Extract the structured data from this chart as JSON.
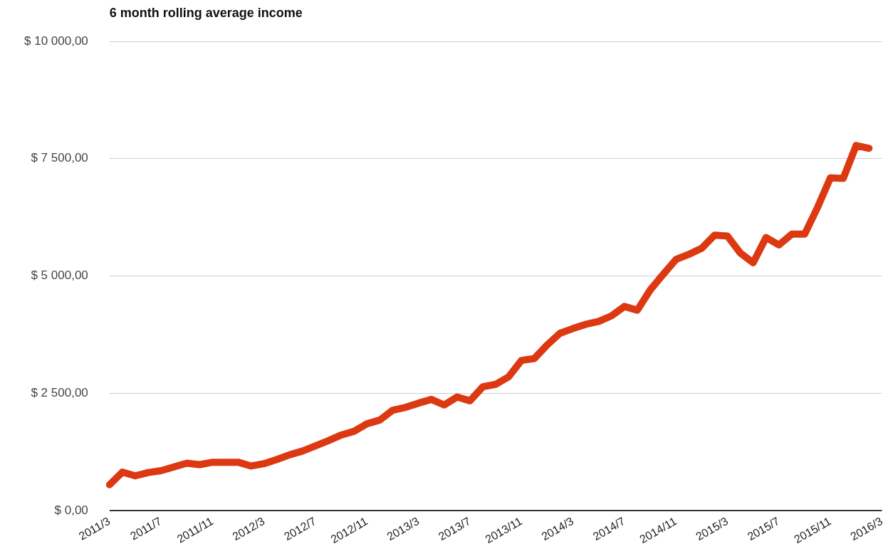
{
  "chart_data": {
    "type": "line",
    "title": "6 month rolling average income",
    "categories": [
      "2011/3",
      null,
      null,
      null,
      "2011/7",
      null,
      null,
      null,
      "2011/11",
      null,
      null,
      null,
      "2012/3",
      null,
      null,
      null,
      "2012/7",
      null,
      null,
      null,
      "2012/11",
      null,
      null,
      null,
      "2013/3",
      null,
      null,
      null,
      "2013/7",
      null,
      null,
      null,
      "2013/11",
      null,
      null,
      null,
      "2014/3",
      null,
      null,
      null,
      "2014/7",
      null,
      null,
      null,
      "2014/11",
      null,
      null,
      null,
      "2015/3",
      null,
      null,
      null,
      "2015/7",
      null,
      null,
      null,
      "2015/11",
      null,
      null,
      null,
      "2016/3"
    ],
    "series": [
      {
        "color": "#dc3912",
        "values": [
          550,
          820,
          740,
          810,
          850,
          930,
          1010,
          980,
          1030,
          1030,
          1030,
          950,
          1000,
          1090,
          1190,
          1270,
          1380,
          1490,
          1610,
          1690,
          1850,
          1930,
          2140,
          2200,
          2290,
          2370,
          2250,
          2420,
          2340,
          2640,
          2690,
          2850,
          3200,
          3240,
          3530,
          3780,
          3880,
          3970,
          4030,
          4150,
          4350,
          4270,
          4700,
          5030,
          5350,
          5460,
          5590,
          5870,
          5850,
          5490,
          5280,
          5820,
          5660,
          5890,
          5890,
          6460,
          7090,
          7080,
          7780,
          7720,
          null
        ]
      }
    ],
    "ylim": [
      0,
      10000
    ],
    "yticks": [
      {
        "value": 0,
        "label": "$ 0,00"
      },
      {
        "value": 2500,
        "label": "$ 2 500,00"
      },
      {
        "value": 5000,
        "label": "$ 5 000,00"
      },
      {
        "value": 7500,
        "label": "$ 7 500,00"
      },
      {
        "value": 10000,
        "label": "$ 10 000,00"
      }
    ],
    "grid": "y",
    "legend": false,
    "marker": "none",
    "line_style": "solid"
  }
}
